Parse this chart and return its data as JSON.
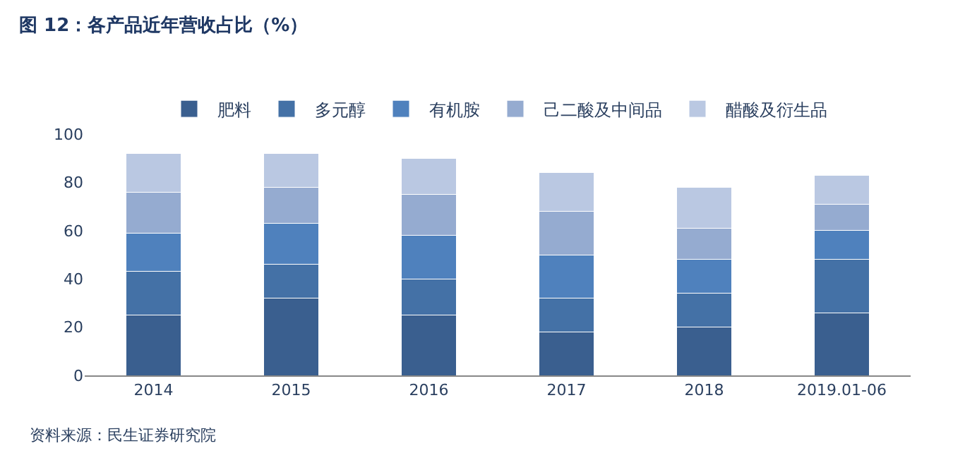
{
  "chart_data": {
    "type": "bar",
    "stacked": true,
    "title": "图 12：各产品近年营收占比（%）",
    "categories": [
      "2014",
      "2015",
      "2016",
      "2017",
      "2018",
      "2019.01-06"
    ],
    "series": [
      {
        "name": "肥料",
        "color": "#3a5f8f",
        "values": [
          25,
          32,
          25,
          18,
          20,
          26
        ]
      },
      {
        "name": "多元醇",
        "color": "#4471a6",
        "values": [
          18,
          14,
          15,
          14,
          14,
          22
        ]
      },
      {
        "name": "有机胺",
        "color": "#4f81bd",
        "values": [
          16,
          17,
          18,
          18,
          14,
          12
        ]
      },
      {
        "name": "己二酸及中间品",
        "color": "#95abd0",
        "values": [
          17,
          15,
          17,
          18,
          13,
          11
        ]
      },
      {
        "name": "醋酸及衍生品",
        "color": "#bac8e2",
        "values": [
          16,
          14,
          15,
          16,
          17,
          12
        ]
      }
    ],
    "ylim": [
      0,
      100
    ],
    "yticks": [
      0,
      20,
      40,
      60,
      80,
      100
    ],
    "legend": "top",
    "annotations": [
      "资料来源：民生证券研究院"
    ]
  }
}
